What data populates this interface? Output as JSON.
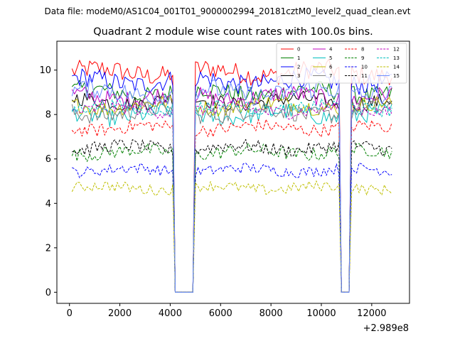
{
  "chart_data": {
    "type": "line",
    "suptitle": "Data file: modeM0/AS1C04_001T01_9000002994_20181cztM0_level2_quad_clean.evt",
    "title": "Quadrant 2 module wise count rates with 100.0s bins.",
    "xlabel": "",
    "ylabel": "",
    "x_offset_label": "+2.989e8",
    "xlim": [
      -500,
      13500
    ],
    "ylim": [
      -0.5,
      11.3
    ],
    "xticks": [
      0,
      2000,
      4000,
      6000,
      8000,
      10000,
      12000
    ],
    "xtick_labels": [
      "0",
      "2000",
      "4000",
      "6000",
      "8000",
      "10000",
      "12000"
    ],
    "yticks": [
      0,
      2,
      4,
      6,
      8,
      10
    ],
    "ytick_labels": [
      "0",
      "2",
      "4",
      "6",
      "8",
      "10"
    ],
    "grid": false,
    "legend_position": "top-right",
    "segments": [
      {
        "start": 100,
        "end": 4100
      },
      {
        "start": 4200,
        "end": 4900,
        "gap": true
      },
      {
        "start": 5000,
        "end": 10700
      },
      {
        "start": 10800,
        "end": 11100,
        "gap": true
      },
      {
        "start": 11200,
        "end": 12800
      }
    ],
    "series": [
      {
        "name": "0",
        "color": "#ff0000",
        "dash": "solid",
        "level": 9.9,
        "noise": 0.45
      },
      {
        "name": "1",
        "color": "#008000",
        "dash": "solid",
        "level": 9.0,
        "noise": 0.4
      },
      {
        "name": "2",
        "color": "#0000ff",
        "dash": "solid",
        "level": 9.5,
        "noise": 0.45
      },
      {
        "name": "3",
        "color": "#000000",
        "dash": "solid",
        "level": 8.6,
        "noise": 0.35
      },
      {
        "name": "4",
        "color": "#bf00bf",
        "dash": "solid",
        "level": 8.8,
        "noise": 0.4
      },
      {
        "name": "5",
        "color": "#00bfbf",
        "dash": "solid",
        "level": 8.0,
        "noise": 0.4
      },
      {
        "name": "6",
        "color": "#bfbf00",
        "dash": "solid",
        "level": 8.4,
        "noise": 0.35
      },
      {
        "name": "7",
        "color": "#808080",
        "dash": "solid",
        "level": 8.1,
        "noise": 0.4
      },
      {
        "name": "8",
        "color": "#ff0000",
        "dash": "dashed",
        "level": 7.4,
        "noise": 0.3
      },
      {
        "name": "9",
        "color": "#008000",
        "dash": "dashed",
        "level": 6.3,
        "noise": 0.3
      },
      {
        "name": "10",
        "color": "#0000ff",
        "dash": "dashed",
        "level": 5.5,
        "noise": 0.25
      },
      {
        "name": "11",
        "color": "#000000",
        "dash": "dashed",
        "level": 6.5,
        "noise": 0.3
      },
      {
        "name": "12",
        "color": "#bf00bf",
        "dash": "dashed",
        "level": 8.2,
        "noise": 0.3
      },
      {
        "name": "13",
        "color": "#00bfbf",
        "dash": "dashed",
        "level": 8.3,
        "noise": 0.3
      },
      {
        "name": "14",
        "color": "#bfbf00",
        "dash": "dashed",
        "level": 4.7,
        "noise": 0.25
      },
      {
        "name": "15",
        "color": "#6b8cff",
        "dash": "solid",
        "level": 9.0,
        "noise": 0.45
      }
    ]
  }
}
